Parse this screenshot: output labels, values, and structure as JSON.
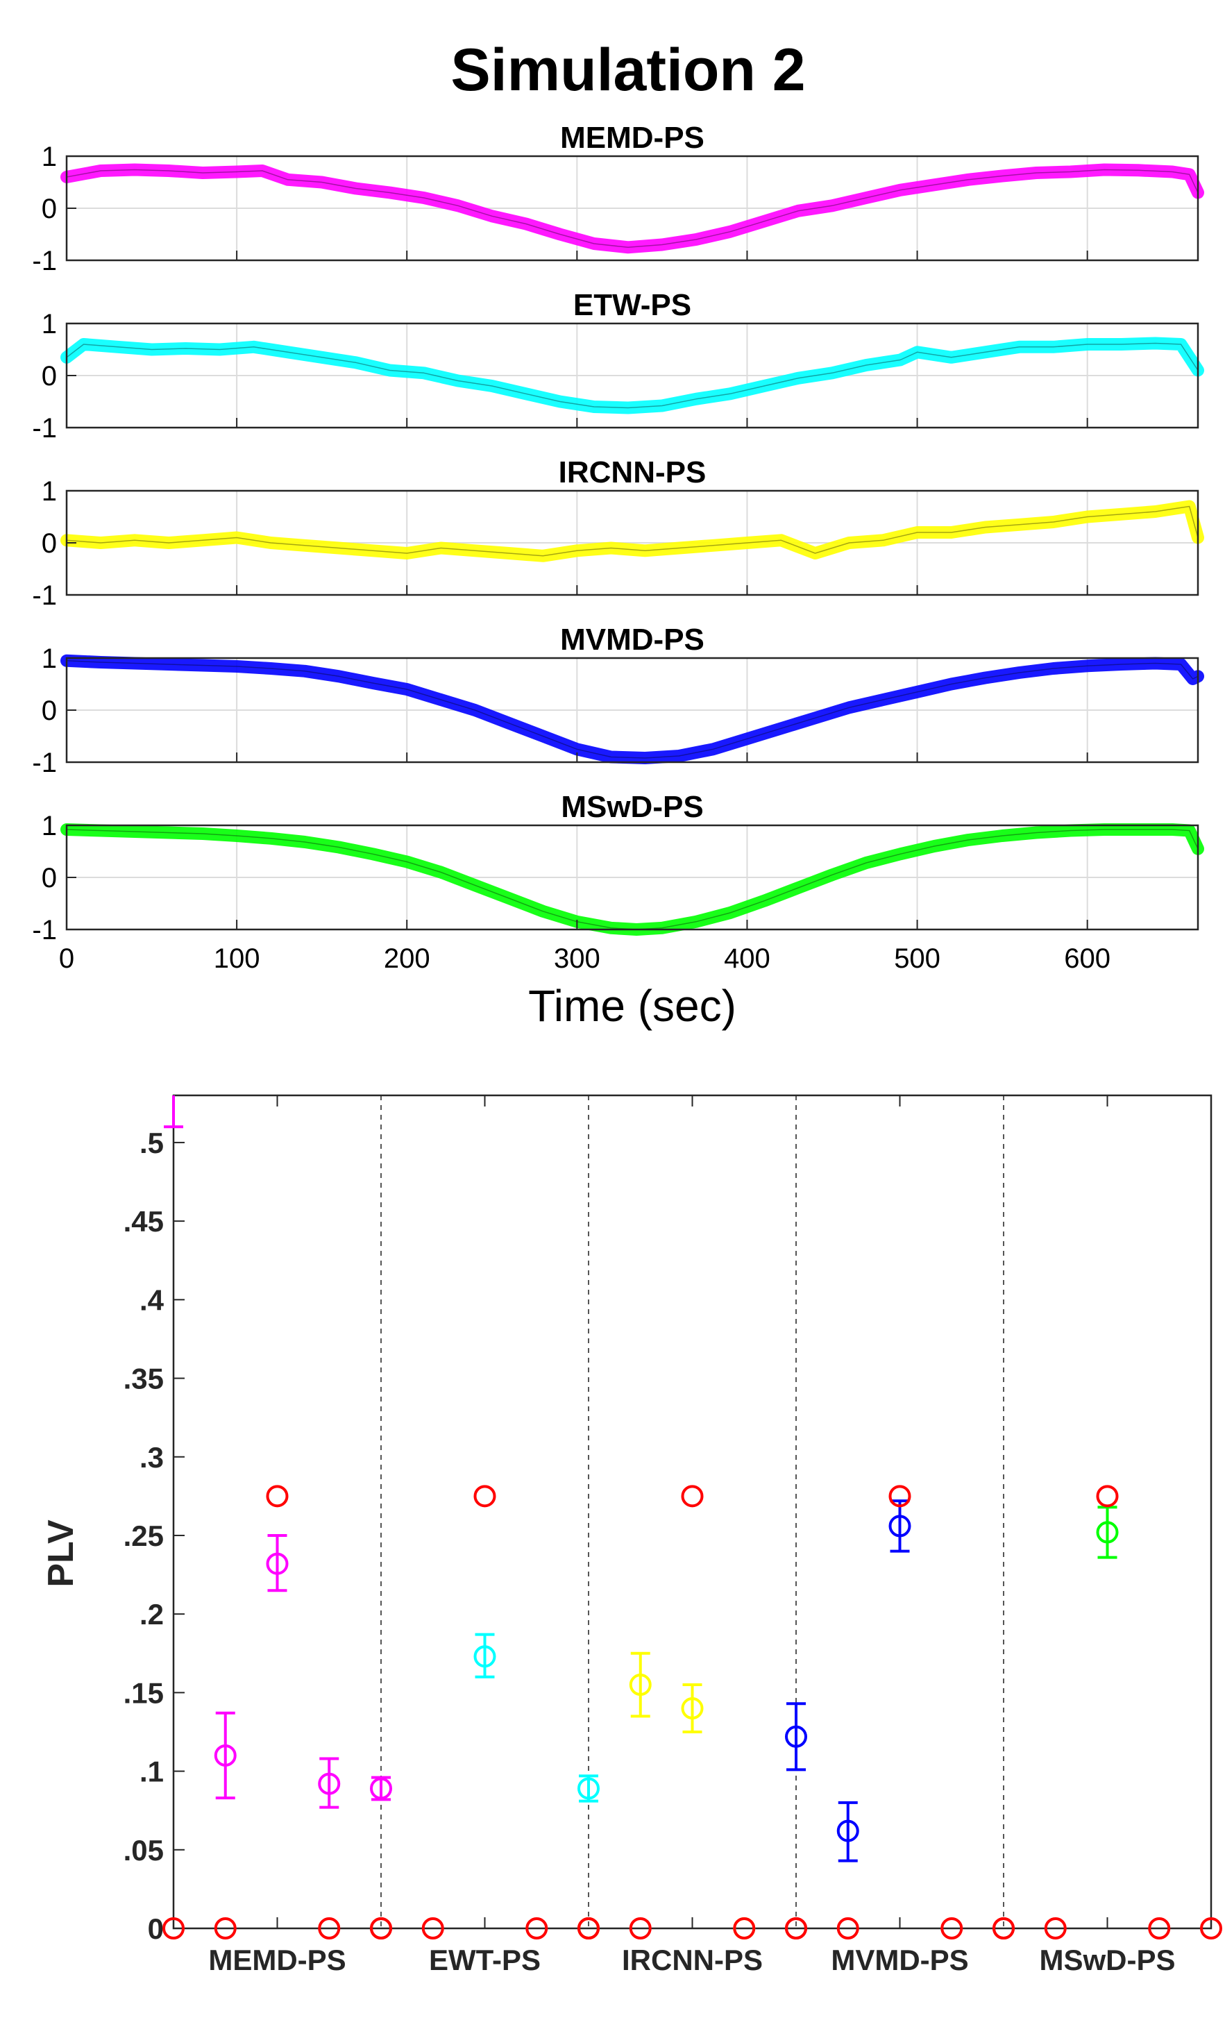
{
  "figure_title": "Simulation 2",
  "colors": {
    "magenta": "#ff00ff",
    "cyan": "#00ffff",
    "yellow": "#ffff00",
    "blue": "#0000ff",
    "green": "#00ff00",
    "reference": "#ff0000"
  },
  "chart_data": [
    {
      "type": "line",
      "title": "MEMD-PS",
      "xlabel": "",
      "ylabel": "",
      "xlim": [
        0,
        665
      ],
      "ylim": [
        -1,
        1
      ],
      "yticks": [
        -1,
        0,
        1
      ],
      "xticks": [
        0,
        100,
        200,
        300,
        400,
        500,
        600
      ],
      "grid": true,
      "color": "magenta",
      "x": [
        0,
        20,
        40,
        60,
        80,
        100,
        115,
        130,
        150,
        170,
        190,
        210,
        230,
        250,
        270,
        290,
        310,
        330,
        350,
        370,
        390,
        410,
        430,
        450,
        470,
        490,
        510,
        530,
        550,
        570,
        590,
        610,
        630,
        650,
        660,
        665
      ],
      "y": [
        0.6,
        0.72,
        0.74,
        0.72,
        0.68,
        0.7,
        0.72,
        0.55,
        0.5,
        0.38,
        0.3,
        0.2,
        0.05,
        -0.15,
        -0.3,
        -0.5,
        -0.68,
        -0.75,
        -0.7,
        -0.6,
        -0.45,
        -0.25,
        -0.05,
        0.05,
        0.2,
        0.35,
        0.45,
        0.55,
        0.62,
        0.68,
        0.7,
        0.74,
        0.73,
        0.7,
        0.65,
        0.3
      ]
    },
    {
      "type": "line",
      "title": "ETW-PS",
      "xlabel": "",
      "ylabel": "",
      "xlim": [
        0,
        665
      ],
      "ylim": [
        -1,
        1
      ],
      "yticks": [
        -1,
        0,
        1
      ],
      "xticks": [
        0,
        100,
        200,
        300,
        400,
        500,
        600
      ],
      "grid": true,
      "color": "cyan",
      "x": [
        0,
        10,
        30,
        50,
        70,
        90,
        110,
        130,
        150,
        170,
        190,
        210,
        230,
        250,
        270,
        290,
        310,
        330,
        350,
        370,
        390,
        410,
        430,
        450,
        470,
        490,
        500,
        520,
        540,
        560,
        580,
        600,
        620,
        640,
        655,
        665
      ],
      "y": [
        0.35,
        0.6,
        0.55,
        0.5,
        0.52,
        0.5,
        0.55,
        0.45,
        0.35,
        0.25,
        0.1,
        0.05,
        -0.1,
        -0.2,
        -0.35,
        -0.5,
        -0.6,
        -0.62,
        -0.58,
        -0.45,
        -0.35,
        -0.2,
        -0.05,
        0.05,
        0.2,
        0.3,
        0.45,
        0.35,
        0.45,
        0.55,
        0.55,
        0.6,
        0.6,
        0.62,
        0.6,
        0.1
      ]
    },
    {
      "type": "line",
      "title": "IRCNN-PS",
      "xlabel": "",
      "ylabel": "",
      "xlim": [
        0,
        665
      ],
      "ylim": [
        -1,
        1
      ],
      "yticks": [
        -1,
        0,
        1
      ],
      "xticks": [
        0,
        100,
        200,
        300,
        400,
        500,
        600
      ],
      "grid": true,
      "color": "yellow",
      "x": [
        0,
        20,
        40,
        60,
        80,
        100,
        120,
        140,
        160,
        180,
        200,
        220,
        240,
        260,
        280,
        300,
        320,
        340,
        360,
        380,
        400,
        420,
        440,
        460,
        480,
        500,
        520,
        540,
        560,
        580,
        600,
        620,
        640,
        660,
        665
      ],
      "y": [
        0.05,
        0.0,
        0.05,
        0.0,
        0.05,
        0.1,
        0.0,
        -0.05,
        -0.1,
        -0.15,
        -0.2,
        -0.1,
        -0.15,
        -0.2,
        -0.25,
        -0.15,
        -0.1,
        -0.15,
        -0.1,
        -0.05,
        0.0,
        0.05,
        -0.2,
        0.0,
        0.05,
        0.2,
        0.2,
        0.3,
        0.35,
        0.4,
        0.5,
        0.55,
        0.6,
        0.7,
        0.1
      ]
    },
    {
      "type": "line",
      "title": "MVMD-PS",
      "xlabel": "",
      "ylabel": "",
      "xlim": [
        0,
        665
      ],
      "ylim": [
        -1,
        1
      ],
      "yticks": [
        -1,
        0,
        1
      ],
      "xticks": [
        0,
        100,
        200,
        300,
        400,
        500,
        600
      ],
      "grid": true,
      "color": "blue",
      "x": [
        0,
        20,
        40,
        60,
        80,
        100,
        120,
        140,
        160,
        180,
        200,
        220,
        240,
        260,
        280,
        300,
        320,
        340,
        360,
        380,
        400,
        420,
        440,
        460,
        480,
        500,
        520,
        540,
        560,
        580,
        600,
        620,
        640,
        655,
        662,
        665
      ],
      "y": [
        0.95,
        0.92,
        0.9,
        0.88,
        0.86,
        0.84,
        0.8,
        0.75,
        0.65,
        0.52,
        0.4,
        0.2,
        0.0,
        -0.25,
        -0.5,
        -0.75,
        -0.9,
        -0.92,
        -0.88,
        -0.75,
        -0.55,
        -0.35,
        -0.15,
        0.05,
        0.2,
        0.35,
        0.5,
        0.62,
        0.72,
        0.8,
        0.85,
        0.88,
        0.9,
        0.88,
        0.6,
        0.65
      ]
    },
    {
      "type": "line",
      "title": "MSwD-PS",
      "xlabel": "Time (sec)",
      "ylabel": "",
      "xlim": [
        0,
        665
      ],
      "ylim": [
        -1,
        1
      ],
      "yticks": [
        -1,
        0,
        1
      ],
      "xticks": [
        0,
        100,
        200,
        300,
        400,
        500,
        600
      ],
      "grid": true,
      "color": "green",
      "x": [
        0,
        20,
        40,
        60,
        80,
        100,
        120,
        140,
        160,
        180,
        200,
        220,
        240,
        260,
        280,
        300,
        320,
        335,
        350,
        370,
        390,
        410,
        430,
        450,
        470,
        490,
        510,
        530,
        550,
        570,
        590,
        610,
        630,
        650,
        660,
        665
      ],
      "y": [
        0.92,
        0.9,
        0.88,
        0.86,
        0.84,
        0.8,
        0.75,
        0.68,
        0.58,
        0.45,
        0.3,
        0.1,
        -0.15,
        -0.4,
        -0.65,
        -0.85,
        -0.97,
        -1.0,
        -0.97,
        -0.85,
        -0.68,
        -0.45,
        -0.2,
        0.05,
        0.28,
        0.45,
        0.6,
        0.72,
        0.8,
        0.86,
        0.9,
        0.92,
        0.92,
        0.92,
        0.9,
        0.55
      ]
    },
    {
      "type": "scatter",
      "title": "",
      "xlabel": "",
      "ylabel": "PLV",
      "ylim": [
        0,
        0.53
      ],
      "yticks": [
        0,
        0.05,
        0.1,
        0.15,
        0.2,
        0.25,
        0.3,
        0.35,
        0.4,
        0.45,
        0.5
      ],
      "grid": false,
      "categories": [
        "MEMD-PS",
        "EWT-PS",
        "IRCNN-PS",
        "MVMD-PS",
        "MSwD-PS"
      ],
      "reference": {
        "color": "reference",
        "points": [
          {
            "group": 0,
            "slot": 0,
            "value": 0
          },
          {
            "group": 0,
            "slot": 1,
            "value": 0
          },
          {
            "group": 0,
            "slot": 2,
            "value": 0.275
          },
          {
            "group": 0,
            "slot": 3,
            "value": 0
          },
          {
            "group": 0,
            "slot": 4,
            "value": 0
          },
          {
            "group": 1,
            "slot": 0,
            "value": 0
          },
          {
            "group": 1,
            "slot": 1,
            "value": 0
          },
          {
            "group": 1,
            "slot": 2,
            "value": 0.275
          },
          {
            "group": 1,
            "slot": 3,
            "value": 0
          },
          {
            "group": 1,
            "slot": 4,
            "value": 0
          },
          {
            "group": 2,
            "slot": 0,
            "value": 0
          },
          {
            "group": 2,
            "slot": 1,
            "value": 0
          },
          {
            "group": 2,
            "slot": 2,
            "value": 0.275
          },
          {
            "group": 2,
            "slot": 3,
            "value": 0
          },
          {
            "group": 2,
            "slot": 4,
            "value": 0
          },
          {
            "group": 3,
            "slot": 0,
            "value": 0
          },
          {
            "group": 3,
            "slot": 1,
            "value": 0
          },
          {
            "group": 3,
            "slot": 2,
            "value": 0.275
          },
          {
            "group": 3,
            "slot": 3,
            "value": 0
          },
          {
            "group": 3,
            "slot": 4,
            "value": 0
          },
          {
            "group": 4,
            "slot": 0,
            "value": 0
          },
          {
            "group": 4,
            "slot": 1,
            "value": 0
          },
          {
            "group": 4,
            "slot": 2,
            "value": 0.275
          },
          {
            "group": 4,
            "slot": 3,
            "value": 0
          },
          {
            "group": 4,
            "slot": 4,
            "value": 0
          }
        ]
      },
      "estimates": [
        {
          "group": 0,
          "color": "magenta",
          "points": [
            {
              "slot": 0,
              "mean": 0.53,
              "lo": 0.51,
              "hi": 0.55,
              "marker": false
            },
            {
              "slot": 1,
              "mean": 0.11,
              "lo": 0.083,
              "hi": 0.137,
              "marker": true
            },
            {
              "slot": 2,
              "mean": 0.232,
              "lo": 0.215,
              "hi": 0.25,
              "marker": true
            },
            {
              "slot": 3,
              "mean": 0.092,
              "lo": 0.077,
              "hi": 0.108,
              "marker": true
            },
            {
              "slot": 4,
              "mean": 0.089,
              "lo": 0.082,
              "hi": 0.096,
              "marker": true
            }
          ]
        },
        {
          "group": 1,
          "color": "cyan",
          "points": [
            {
              "slot": 0,
              "mean": 0,
              "lo": 0,
              "hi": 0,
              "marker": false
            },
            {
              "slot": 1,
              "mean": 0,
              "lo": 0,
              "hi": 0,
              "marker": false
            },
            {
              "slot": 2,
              "mean": 0.173,
              "lo": 0.16,
              "hi": 0.187,
              "marker": true
            },
            {
              "slot": 3,
              "mean": 0,
              "lo": 0,
              "hi": 0,
              "marker": false
            },
            {
              "slot": 4,
              "mean": 0.089,
              "lo": 0.081,
              "hi": 0.097,
              "marker": true
            }
          ]
        },
        {
          "group": 2,
          "color": "yellow",
          "points": [
            {
              "slot": 0,
              "mean": 0,
              "lo": 0,
              "hi": 0,
              "marker": true
            },
            {
              "slot": 1,
              "mean": 0.155,
              "lo": 0.135,
              "hi": 0.175,
              "marker": true
            },
            {
              "slot": 2,
              "mean": 0.14,
              "lo": 0.125,
              "hi": 0.155,
              "marker": true
            },
            {
              "slot": 3,
              "mean": 0,
              "lo": 0,
              "hi": 0,
              "marker": true
            },
            {
              "slot": 4,
              "mean": 0,
              "lo": 0,
              "hi": 0,
              "marker": false
            }
          ]
        },
        {
          "group": 3,
          "color": "blue",
          "points": [
            {
              "slot": 0,
              "mean": 0.122,
              "lo": 0.101,
              "hi": 0.143,
              "marker": true
            },
            {
              "slot": 1,
              "mean": 0.062,
              "lo": 0.043,
              "hi": 0.08,
              "marker": true
            },
            {
              "slot": 2,
              "mean": 0.256,
              "lo": 0.24,
              "hi": 0.272,
              "marker": true
            },
            {
              "slot": 3,
              "mean": 0,
              "lo": 0,
              "hi": 0,
              "marker": false
            },
            {
              "slot": 4,
              "mean": 0,
              "lo": 0,
              "hi": 0,
              "marker": false
            }
          ]
        },
        {
          "group": 4,
          "color": "green",
          "points": [
            {
              "slot": 0,
              "mean": 0,
              "lo": 0,
              "hi": 0,
              "marker": false
            },
            {
              "slot": 1,
              "mean": 0,
              "lo": 0,
              "hi": 0,
              "marker": false
            },
            {
              "slot": 2,
              "mean": 0.252,
              "lo": 0.236,
              "hi": 0.268,
              "marker": true
            },
            {
              "slot": 3,
              "mean": 0,
              "lo": 0,
              "hi": 0,
              "marker": false
            },
            {
              "slot": 4,
              "mean": 0,
              "lo": 0,
              "hi": 0,
              "marker": false
            }
          ]
        }
      ]
    }
  ]
}
